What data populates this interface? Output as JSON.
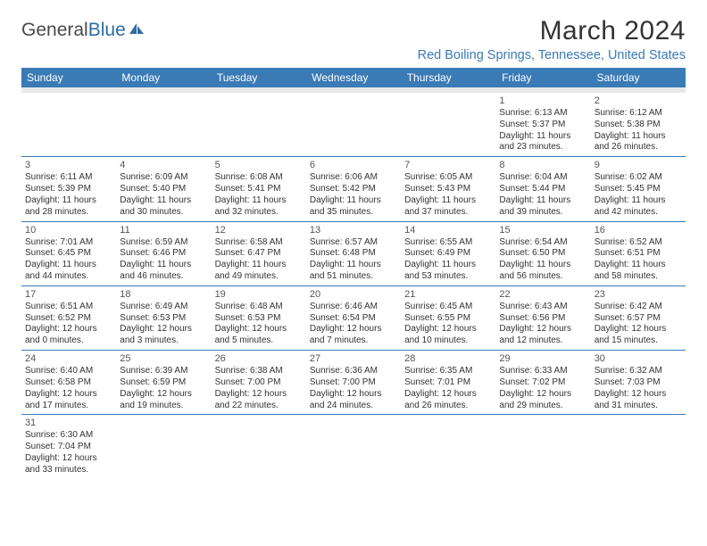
{
  "logo": {
    "text1": "General",
    "text2": "Blue"
  },
  "header": {
    "month_title": "March 2024",
    "location": "Red Boiling Springs, Tennessee, United States"
  },
  "colors": {
    "header_bar": "#3a7ab5",
    "location_text": "#3a7ab5",
    "row_divider": "#3a7ab5",
    "spacer_bg": "#e8e8e8",
    "body_text": "#333333",
    "logo_gray": "#4a4a4a",
    "logo_blue": "#2d6ca2",
    "background": "#ffffff"
  },
  "weekdays": [
    "Sunday",
    "Monday",
    "Tuesday",
    "Wednesday",
    "Thursday",
    "Friday",
    "Saturday"
  ],
  "weeks": [
    [
      null,
      null,
      null,
      null,
      null,
      {
        "n": "1",
        "sr": "Sunrise: 6:13 AM",
        "ss": "Sunset: 5:37 PM",
        "d1": "Daylight: 11 hours",
        "d2": "and 23 minutes."
      },
      {
        "n": "2",
        "sr": "Sunrise: 6:12 AM",
        "ss": "Sunset: 5:38 PM",
        "d1": "Daylight: 11 hours",
        "d2": "and 26 minutes."
      }
    ],
    [
      {
        "n": "3",
        "sr": "Sunrise: 6:11 AM",
        "ss": "Sunset: 5:39 PM",
        "d1": "Daylight: 11 hours",
        "d2": "and 28 minutes."
      },
      {
        "n": "4",
        "sr": "Sunrise: 6:09 AM",
        "ss": "Sunset: 5:40 PM",
        "d1": "Daylight: 11 hours",
        "d2": "and 30 minutes."
      },
      {
        "n": "5",
        "sr": "Sunrise: 6:08 AM",
        "ss": "Sunset: 5:41 PM",
        "d1": "Daylight: 11 hours",
        "d2": "and 32 minutes."
      },
      {
        "n": "6",
        "sr": "Sunrise: 6:06 AM",
        "ss": "Sunset: 5:42 PM",
        "d1": "Daylight: 11 hours",
        "d2": "and 35 minutes."
      },
      {
        "n": "7",
        "sr": "Sunrise: 6:05 AM",
        "ss": "Sunset: 5:43 PM",
        "d1": "Daylight: 11 hours",
        "d2": "and 37 minutes."
      },
      {
        "n": "8",
        "sr": "Sunrise: 6:04 AM",
        "ss": "Sunset: 5:44 PM",
        "d1": "Daylight: 11 hours",
        "d2": "and 39 minutes."
      },
      {
        "n": "9",
        "sr": "Sunrise: 6:02 AM",
        "ss": "Sunset: 5:45 PM",
        "d1": "Daylight: 11 hours",
        "d2": "and 42 minutes."
      }
    ],
    [
      {
        "n": "10",
        "sr": "Sunrise: 7:01 AM",
        "ss": "Sunset: 6:45 PM",
        "d1": "Daylight: 11 hours",
        "d2": "and 44 minutes."
      },
      {
        "n": "11",
        "sr": "Sunrise: 6:59 AM",
        "ss": "Sunset: 6:46 PM",
        "d1": "Daylight: 11 hours",
        "d2": "and 46 minutes."
      },
      {
        "n": "12",
        "sr": "Sunrise: 6:58 AM",
        "ss": "Sunset: 6:47 PM",
        "d1": "Daylight: 11 hours",
        "d2": "and 49 minutes."
      },
      {
        "n": "13",
        "sr": "Sunrise: 6:57 AM",
        "ss": "Sunset: 6:48 PM",
        "d1": "Daylight: 11 hours",
        "d2": "and 51 minutes."
      },
      {
        "n": "14",
        "sr": "Sunrise: 6:55 AM",
        "ss": "Sunset: 6:49 PM",
        "d1": "Daylight: 11 hours",
        "d2": "and 53 minutes."
      },
      {
        "n": "15",
        "sr": "Sunrise: 6:54 AM",
        "ss": "Sunset: 6:50 PM",
        "d1": "Daylight: 11 hours",
        "d2": "and 56 minutes."
      },
      {
        "n": "16",
        "sr": "Sunrise: 6:52 AM",
        "ss": "Sunset: 6:51 PM",
        "d1": "Daylight: 11 hours",
        "d2": "and 58 minutes."
      }
    ],
    [
      {
        "n": "17",
        "sr": "Sunrise: 6:51 AM",
        "ss": "Sunset: 6:52 PM",
        "d1": "Daylight: 12 hours",
        "d2": "and 0 minutes."
      },
      {
        "n": "18",
        "sr": "Sunrise: 6:49 AM",
        "ss": "Sunset: 6:53 PM",
        "d1": "Daylight: 12 hours",
        "d2": "and 3 minutes."
      },
      {
        "n": "19",
        "sr": "Sunrise: 6:48 AM",
        "ss": "Sunset: 6:53 PM",
        "d1": "Daylight: 12 hours",
        "d2": "and 5 minutes."
      },
      {
        "n": "20",
        "sr": "Sunrise: 6:46 AM",
        "ss": "Sunset: 6:54 PM",
        "d1": "Daylight: 12 hours",
        "d2": "and 7 minutes."
      },
      {
        "n": "21",
        "sr": "Sunrise: 6:45 AM",
        "ss": "Sunset: 6:55 PM",
        "d1": "Daylight: 12 hours",
        "d2": "and 10 minutes."
      },
      {
        "n": "22",
        "sr": "Sunrise: 6:43 AM",
        "ss": "Sunset: 6:56 PM",
        "d1": "Daylight: 12 hours",
        "d2": "and 12 minutes."
      },
      {
        "n": "23",
        "sr": "Sunrise: 6:42 AM",
        "ss": "Sunset: 6:57 PM",
        "d1": "Daylight: 12 hours",
        "d2": "and 15 minutes."
      }
    ],
    [
      {
        "n": "24",
        "sr": "Sunrise: 6:40 AM",
        "ss": "Sunset: 6:58 PM",
        "d1": "Daylight: 12 hours",
        "d2": "and 17 minutes."
      },
      {
        "n": "25",
        "sr": "Sunrise: 6:39 AM",
        "ss": "Sunset: 6:59 PM",
        "d1": "Daylight: 12 hours",
        "d2": "and 19 minutes."
      },
      {
        "n": "26",
        "sr": "Sunrise: 6:38 AM",
        "ss": "Sunset: 7:00 PM",
        "d1": "Daylight: 12 hours",
        "d2": "and 22 minutes."
      },
      {
        "n": "27",
        "sr": "Sunrise: 6:36 AM",
        "ss": "Sunset: 7:00 PM",
        "d1": "Daylight: 12 hours",
        "d2": "and 24 minutes."
      },
      {
        "n": "28",
        "sr": "Sunrise: 6:35 AM",
        "ss": "Sunset: 7:01 PM",
        "d1": "Daylight: 12 hours",
        "d2": "and 26 minutes."
      },
      {
        "n": "29",
        "sr": "Sunrise: 6:33 AM",
        "ss": "Sunset: 7:02 PM",
        "d1": "Daylight: 12 hours",
        "d2": "and 29 minutes."
      },
      {
        "n": "30",
        "sr": "Sunrise: 6:32 AM",
        "ss": "Sunset: 7:03 PM",
        "d1": "Daylight: 12 hours",
        "d2": "and 31 minutes."
      }
    ],
    [
      {
        "n": "31",
        "sr": "Sunrise: 6:30 AM",
        "ss": "Sunset: 7:04 PM",
        "d1": "Daylight: 12 hours",
        "d2": "and 33 minutes."
      },
      null,
      null,
      null,
      null,
      null,
      null
    ]
  ]
}
